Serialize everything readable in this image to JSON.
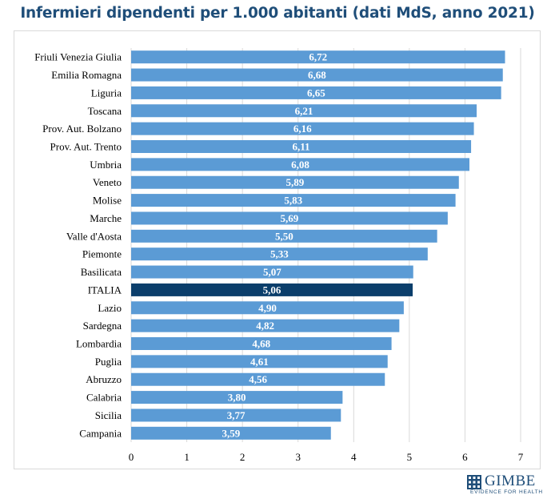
{
  "title": "Infermieri dipendenti per 1.000 abitanti (dati MdS, anno 2021)",
  "colors": {
    "bar": "#5b9bd5",
    "highlight": "#0b3e6b",
    "title": "#1f4e79",
    "grid": "#d9d9d9",
    "label": "#ffffff"
  },
  "logo": {
    "name": "GIMBE",
    "tagline": "EVIDENCE FOR HEALTH"
  },
  "chart_data": {
    "type": "bar",
    "orientation": "horizontal",
    "title": "Infermieri dipendenti per 1.000 abitanti (dati MdS, anno 2021)",
    "categories": [
      "Friuli Venezia Giulia",
      "Emilia Romagna",
      "Liguria",
      "Toscana",
      "Prov. Aut. Bolzano",
      "Prov. Aut. Trento",
      "Umbria",
      "Veneto",
      "Molise",
      "Marche",
      "Valle d'Aosta",
      "Piemonte",
      "Basilicata",
      "ITALIA",
      "Lazio",
      "Sardegna",
      "Lombardia",
      "Puglia",
      "Abruzzo",
      "Calabria",
      "Sicilia",
      "Campania"
    ],
    "values": [
      6.72,
      6.68,
      6.65,
      6.21,
      6.16,
      6.11,
      6.08,
      5.89,
      5.83,
      5.69,
      5.5,
      5.33,
      5.07,
      5.06,
      4.9,
      4.82,
      4.68,
      4.61,
      4.56,
      3.8,
      3.77,
      3.59
    ],
    "data_labels": [
      "6,72",
      "6,68",
      "6,65",
      "6,21",
      "6,16",
      "6,11",
      "6,08",
      "5,89",
      "5,83",
      "5,69",
      "5,50",
      "5,33",
      "5,07",
      "5,06",
      "4,90",
      "4,82",
      "4,68",
      "4,61",
      "4,56",
      "3,80",
      "3,77",
      "3,59"
    ],
    "highlight_category": "ITALIA",
    "xlim": [
      0,
      7
    ],
    "xticks": [
      0,
      1,
      2,
      3,
      4,
      5,
      6,
      7
    ],
    "xtick_labels": [
      "0",
      "1",
      "2",
      "3",
      "4",
      "5",
      "6",
      "7"
    ],
    "grid": "vertical",
    "legend": "none"
  }
}
